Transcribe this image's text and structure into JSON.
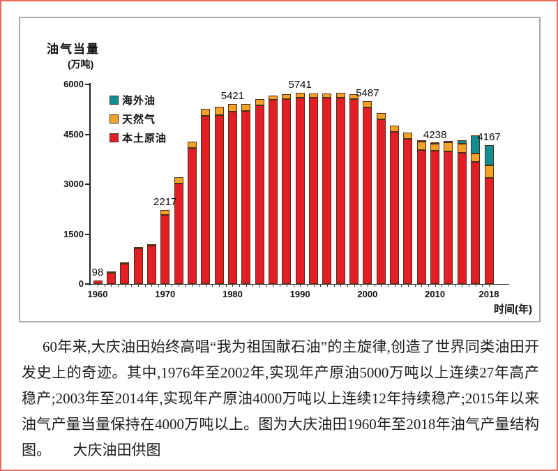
{
  "page": {
    "border_color": "#f0685c",
    "background": "#ffffff"
  },
  "panel": {
    "border_color": "#a9a9a9"
  },
  "chart_header": {
    "title": "油气当量",
    "unit": "(万吨)"
  },
  "axes": {
    "y_ticks": [
      "0",
      "1500",
      "3000",
      "4500",
      "6000"
    ],
    "y_max": 6000,
    "x_tick_years": [
      "1960",
      "1970",
      "1980",
      "1990",
      "2000",
      "2010",
      "2018"
    ],
    "x_axis_label": "时间(年)"
  },
  "legend": [
    {
      "label": "海外油",
      "color": "#0f8f92"
    },
    {
      "label": "天然气",
      "color": "#f4a227"
    },
    {
      "label": "本土原油",
      "color": "#e31e25"
    }
  ],
  "chart_data": {
    "type": "bar",
    "stacked": true,
    "title": "大庆油田1960年至2018年油气产量结构图",
    "xlabel": "时间(年)",
    "ylabel": "油气当量(万吨)",
    "ylim": [
      0,
      6000
    ],
    "grid": false,
    "legend_position": "inside-top-left",
    "categories": [
      1960,
      1962,
      1964,
      1966,
      1968,
      1970,
      1972,
      1974,
      1976,
      1978,
      1980,
      1982,
      1984,
      1986,
      1988,
      1990,
      1992,
      1994,
      1996,
      1998,
      2000,
      2002,
      2004,
      2006,
      2008,
      2010,
      2012,
      2014,
      2016,
      2018
    ],
    "series": [
      {
        "name": "本土原油",
        "color": "#e31e25",
        "values": [
          98,
          343,
          618,
          1068,
          1160,
          2085,
          3025,
          4090,
          5060,
          5080,
          5175,
          5195,
          5380,
          5535,
          5570,
          5600,
          5595,
          5600,
          5610,
          5560,
          5300,
          4960,
          4575,
          4370,
          4030,
          4000,
          3985,
          3950,
          3670,
          3185
        ]
      },
      {
        "name": "天然气",
        "color": "#f4a227",
        "values": [
          0,
          7,
          12,
          22,
          30,
          132,
          185,
          200,
          200,
          250,
          246,
          225,
          180,
          125,
          130,
          141,
          135,
          135,
          130,
          140,
          187,
          190,
          185,
          175,
          245,
          218,
          265,
          260,
          245,
          385
        ]
      },
      {
        "name": "海外油",
        "color": "#0f8f92",
        "values": [
          0,
          0,
          0,
          0,
          0,
          0,
          0,
          0,
          0,
          0,
          0,
          0,
          0,
          0,
          0,
          0,
          0,
          0,
          0,
          0,
          0,
          0,
          0,
          0,
          15,
          20,
          50,
          105,
          560,
          597
        ]
      }
    ],
    "totals": [
      98,
      350,
      630,
      1090,
      1190,
      2217,
      3210,
      4290,
      5260,
      5330,
      5421,
      5420,
      5560,
      5660,
      5700,
      5741,
      5730,
      5735,
      5740,
      5700,
      5487,
      5150,
      4760,
      4545,
      4290,
      4238,
      4300,
      4315,
      4475,
      4167
    ],
    "labeled_points": [
      {
        "year": 1960,
        "label": "98"
      },
      {
        "year": 1970,
        "label": "2217"
      },
      {
        "year": 1980,
        "label": "5421"
      },
      {
        "year": 1990,
        "label": "5741"
      },
      {
        "year": 2000,
        "label": "5487"
      },
      {
        "year": 2010,
        "label": "4238"
      },
      {
        "year": 2018,
        "label": "4167"
      }
    ]
  },
  "caption": {
    "text": "60年来,大庆油田始终高唱“我为祖国献石油”的主旋律,创造了世界同类油田开发史上的奇迹。其中,1976年至2002年,实现年产原油5000万吨以上连续27年高产稳产;2003年至2014年,实现年产原油4000万吨以上连续12年持续稳产;2015年以来油气产量当量保持在4000万吨以上。图为大庆油田1960年至2018年油气产量结构图。　　大庆油田供图"
  }
}
